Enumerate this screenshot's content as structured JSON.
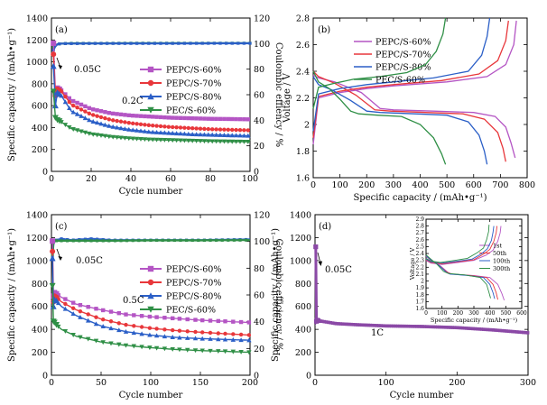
{
  "chart_data": [
    {
      "id": "a",
      "panel_label": "(a)",
      "type": "scatter",
      "xlabel": "Cycle number",
      "ylabel": "Specific capacity / (mAh•g⁻¹)",
      "y2label": "Coulombic effiency / %",
      "xlim": [
        0,
        100
      ],
      "ylim": [
        0,
        1400
      ],
      "y2lim": [
        0,
        120
      ],
      "xticks": [
        0,
        20,
        40,
        60,
        80,
        100
      ],
      "yticks": [
        0,
        200,
        400,
        600,
        800,
        1000,
        1200,
        1400
      ],
      "y2ticks": [
        0,
        20,
        40,
        60,
        80,
        100,
        120
      ],
      "annotations": [
        "0.05C",
        "0.2C"
      ],
      "legend_position": "right",
      "series": [
        {
          "name": "PEPC/S-60%",
          "color": "#b455c4",
          "marker": "square",
          "x": [
            1,
            2,
            3,
            5,
            10,
            20,
            30,
            40,
            50,
            60,
            70,
            80,
            90,
            100
          ],
          "y": [
            1170,
            720,
            760,
            740,
            650,
            570,
            530,
            510,
            500,
            490,
            485,
            480,
            478,
            475
          ]
        },
        {
          "name": "PEPC/S-70%",
          "color": "#e8373b",
          "marker": "circle",
          "x": [
            1,
            2,
            3,
            5,
            10,
            20,
            30,
            40,
            50,
            60,
            70,
            80,
            90,
            100
          ],
          "y": [
            1070,
            690,
            750,
            730,
            610,
            520,
            470,
            440,
            420,
            405,
            395,
            385,
            380,
            375
          ]
        },
        {
          "name": "PEPC/S-80%",
          "color": "#2b5fc7",
          "marker": "triangle",
          "x": [
            1,
            2,
            3,
            5,
            10,
            20,
            30,
            40,
            50,
            60,
            70,
            80,
            90,
            100
          ],
          "y": [
            960,
            600,
            720,
            690,
            550,
            460,
            410,
            380,
            360,
            350,
            340,
            335,
            330,
            325
          ]
        },
        {
          "name": "PEC/S-60%",
          "color": "#2f8f46",
          "marker": "triangle-down",
          "x": [
            1,
            2,
            3,
            5,
            10,
            20,
            30,
            40,
            50,
            60,
            70,
            80,
            90,
            100
          ],
          "y": [
            730,
            490,
            470,
            450,
            390,
            340,
            315,
            300,
            290,
            285,
            280,
            275,
            272,
            270
          ]
        }
      ],
      "ce_series": [
        {
          "color": "#2f8f46",
          "x": [
            1,
            2,
            3,
            5,
            10,
            20,
            40,
            60,
            80,
            100
          ],
          "y": [
            97,
            98,
            99.5,
            100,
            100.2,
            100.2,
            100.3,
            100.3,
            100.3,
            100.3
          ]
        },
        {
          "color": "#2b5fc7",
          "x": [
            1,
            2,
            3,
            5,
            10,
            20,
            40,
            60,
            80,
            100
          ],
          "y": [
            95,
            98,
            99.5,
            100,
            100,
            100.1,
            100.1,
            100.1,
            100.2,
            100.2
          ]
        }
      ]
    },
    {
      "id": "b",
      "panel_label": "(b)",
      "type": "line",
      "xlabel": "Specific capacity / (mAh•g⁻¹)",
      "ylabel": "Voltage / V",
      "xlim": [
        0,
        800
      ],
      "ylim": [
        1.6,
        2.8
      ],
      "xticks": [
        0,
        100,
        200,
        300,
        400,
        500,
        600,
        700,
        800
      ],
      "yticks": [
        1.6,
        1.8,
        2.0,
        2.2,
        2.4,
        2.6,
        2.8
      ],
      "legend_position": "top-right",
      "series": [
        {
          "name": "PEPC/S-60%",
          "color": "#b455c4",
          "discharge": {
            "x": [
              0,
              20,
              80,
              180,
              250,
              300,
              450,
              600,
              680,
              720,
              740,
              755
            ],
            "y": [
              2.37,
              2.35,
              2.32,
              2.24,
              2.12,
              2.11,
              2.1,
              2.09,
              2.06,
              1.98,
              1.86,
              1.75
            ]
          },
          "charge": {
            "x": [
              0,
              20,
              100,
              200,
              300,
              500,
              650,
              720,
              750,
              760
            ],
            "y": [
              1.85,
              2.2,
              2.24,
              2.27,
              2.29,
              2.32,
              2.36,
              2.45,
              2.6,
              2.78
            ]
          }
        },
        {
          "name": "PEPC/S-70%",
          "color": "#e8373b",
          "discharge": {
            "x": [
              0,
              20,
              80,
              160,
              230,
              290,
              420,
              560,
              640,
              690,
              710,
              720
            ],
            "y": [
              2.4,
              2.36,
              2.31,
              2.22,
              2.11,
              2.1,
              2.09,
              2.08,
              2.04,
              1.94,
              1.82,
              1.72
            ]
          },
          "charge": {
            "x": [
              0,
              20,
              100,
              200,
              300,
              480,
              620,
              690,
              720,
              730
            ],
            "y": [
              1.9,
              2.21,
              2.25,
              2.28,
              2.3,
              2.33,
              2.38,
              2.48,
              2.63,
              2.78
            ]
          }
        },
        {
          "name": "PEPC/S-80%",
          "color": "#2b5fc7",
          "discharge": {
            "x": [
              0,
              20,
              70,
              140,
              200,
              250,
              380,
              500,
              580,
              620,
              640,
              650
            ],
            "y": [
              2.36,
              2.3,
              2.26,
              2.18,
              2.1,
              2.09,
              2.08,
              2.07,
              2.02,
              1.92,
              1.8,
              1.7
            ]
          },
          "charge": {
            "x": [
              0,
              20,
              100,
              200,
              300,
              450,
              580,
              630,
              650,
              660
            ],
            "y": [
              1.95,
              2.23,
              2.27,
              2.3,
              2.32,
              2.35,
              2.4,
              2.52,
              2.66,
              2.8
            ]
          }
        },
        {
          "name": "PEC/S-60%",
          "color": "#2f8f46",
          "discharge": {
            "x": [
              0,
              20,
              60,
              100,
              140,
              170,
              240,
              330,
              400,
              450,
              480,
              495
            ],
            "y": [
              2.4,
              2.32,
              2.27,
              2.19,
              2.1,
              2.08,
              2.07,
              2.06,
              2.0,
              1.9,
              1.78,
              1.7
            ]
          },
          "charge": {
            "x": [
              0,
              20,
              80,
              150,
              250,
              350,
              420,
              460,
              485,
              495
            ],
            "y": [
              2.12,
              2.28,
              2.31,
              2.34,
              2.36,
              2.39,
              2.45,
              2.55,
              2.68,
              2.8
            ]
          }
        }
      ]
    },
    {
      "id": "c",
      "panel_label": "(c)",
      "type": "scatter",
      "xlabel": "Cycle number",
      "ylabel": "Specific capacity / (mAh•g⁻¹)",
      "y2label": "Coulombic efficiency / %",
      "xlim": [
        0,
        200
      ],
      "ylim": [
        0,
        1400
      ],
      "y2lim": [
        0,
        120
      ],
      "xticks": [
        0,
        50,
        100,
        150,
        200
      ],
      "yticks": [
        0,
        200,
        400,
        600,
        800,
        1000,
        1200,
        1400
      ],
      "y2ticks": [
        0,
        20,
        40,
        60,
        80,
        100,
        120
      ],
      "annotations": [
        "0.05C",
        "0.5C"
      ],
      "legend_position": "right",
      "series": [
        {
          "name": "PEPC/S-60%",
          "color": "#b455c4",
          "marker": "square",
          "x": [
            1,
            2,
            3,
            5,
            10,
            25,
            50,
            75,
            100,
            125,
            150,
            175,
            200
          ],
          "y": [
            1170,
            690,
            720,
            710,
            680,
            620,
            570,
            530,
            510,
            495,
            480,
            470,
            460
          ]
        },
        {
          "name": "PEPC/S-70%",
          "color": "#e8373b",
          "marker": "circle",
          "x": [
            1,
            2,
            3,
            5,
            10,
            25,
            50,
            75,
            100,
            125,
            150,
            175,
            200
          ],
          "y": [
            1080,
            640,
            690,
            680,
            640,
            570,
            490,
            440,
            410,
            390,
            375,
            362,
            350
          ]
        },
        {
          "name": "PEPC/S-80%",
          "color": "#2b5fc7",
          "marker": "triangle",
          "x": [
            1,
            2,
            3,
            5,
            10,
            25,
            50,
            75,
            100,
            125,
            150,
            175,
            200
          ],
          "y": [
            1020,
            600,
            660,
            650,
            600,
            520,
            430,
            380,
            350,
            330,
            320,
            312,
            305
          ]
        },
        {
          "name": "PEC/S-60%",
          "color": "#2f8f46",
          "marker": "triangle-down",
          "x": [
            1,
            2,
            3,
            5,
            10,
            25,
            50,
            75,
            100,
            125,
            150,
            175,
            200
          ],
          "y": [
            780,
            470,
            460,
            440,
            400,
            340,
            290,
            260,
            240,
            225,
            215,
            208,
            200
          ]
        }
      ],
      "ce_series": [
        {
          "color": "#2b5fc7",
          "x": [
            1,
            2,
            3,
            5,
            10,
            20,
            40,
            60,
            100,
            150,
            200
          ],
          "y": [
            88,
            98,
            100,
            101,
            102,
            101,
            102,
            101,
            101,
            101,
            101.5
          ]
        },
        {
          "color": "#2f8f46",
          "x": [
            1,
            2,
            3,
            5,
            10,
            20,
            40,
            60,
            100,
            150,
            200
          ],
          "y": [
            90,
            99,
            100,
            100.5,
            100.5,
            100.5,
            100.5,
            100.5,
            100.8,
            100.8,
            101
          ]
        }
      ]
    },
    {
      "id": "d",
      "panel_label": "(d)",
      "type": "scatter",
      "xlabel": "Cycle number",
      "ylabel": "Specific capacity / (mAh•g⁻¹)",
      "xlim": [
        0,
        300
      ],
      "ylim": [
        0,
        1400
      ],
      "xticks": [
        0,
        100,
        200,
        300
      ],
      "yticks": [
        0,
        200,
        400,
        600,
        800,
        1000,
        1200,
        1400
      ],
      "annotations": [
        "0.05C",
        "1C"
      ],
      "series": [
        {
          "color": "#8b49a6",
          "marker": "square",
          "x": [
            1,
            2,
            3,
            5,
            10,
            30,
            60,
            100,
            150,
            200,
            250,
            280,
            300
          ],
          "y": [
            1120,
            470,
            480,
            475,
            470,
            450,
            440,
            430,
            425,
            415,
            395,
            380,
            370
          ]
        }
      ]
    },
    {
      "id": "d_inset",
      "type": "line",
      "xlabel": "Specific capacity / (mAh•g⁻¹)",
      "ylabel": "Voltage / V",
      "xlim": [
        0,
        600
      ],
      "ylim": [
        1.6,
        2.9
      ],
      "xticks": [
        0,
        100,
        200,
        300,
        400,
        500,
        600
      ],
      "yticks": [
        1.6,
        1.7,
        1.8,
        1.9,
        2.0,
        2.1,
        2.2,
        2.3,
        2.4,
        2.5,
        2.6,
        2.7,
        2.8,
        2.9
      ],
      "legend_position": "right",
      "series": [
        {
          "name": "1st",
          "color": "#b455c4",
          "discharge": {
            "x": [
              0,
              30,
              90,
              140,
              170,
              300,
              400,
              450,
              475,
              490
            ],
            "y": [
              2.36,
              2.3,
              2.22,
              2.12,
              2.1,
              2.08,
              2.05,
              1.95,
              1.82,
              1.72
            ]
          },
          "charge": {
            "x": [
              0,
              30,
              100,
              200,
              300,
              380,
              420,
              450,
              465,
              470
            ],
            "y": [
              2.3,
              2.26,
              2.24,
              2.27,
              2.3,
              2.38,
              2.45,
              2.58,
              2.7,
              2.8
            ]
          }
        },
        {
          "name": "50th",
          "color": "#e8373b",
          "discharge": {
            "x": [
              0,
              30,
              80,
              130,
              160,
              280,
              380,
              420,
              440,
              450
            ],
            "y": [
              2.37,
              2.31,
              2.23,
              2.13,
              2.1,
              2.08,
              2.05,
              1.95,
              1.83,
              1.73
            ]
          },
          "charge": {
            "x": [
              0,
              30,
              100,
              200,
              300,
              360,
              400,
              425,
              440,
              445
            ],
            "y": [
              2.31,
              2.27,
              2.25,
              2.28,
              2.31,
              2.39,
              2.46,
              2.58,
              2.7,
              2.8
            ]
          }
        },
        {
          "name": "100th",
          "color": "#2b5fc7",
          "discharge": {
            "x": [
              0,
              30,
              80,
              125,
              150,
              260,
              360,
              400,
              420,
              430
            ],
            "y": [
              2.37,
              2.31,
              2.23,
              2.13,
              2.1,
              2.08,
              2.05,
              1.95,
              1.83,
              1.74
            ]
          },
          "charge": {
            "x": [
              0,
              30,
              100,
              200,
              290,
              350,
              385,
              410,
              420,
              425
            ],
            "y": [
              2.32,
              2.28,
              2.26,
              2.29,
              2.32,
              2.4,
              2.47,
              2.59,
              2.71,
              2.8
            ]
          }
        },
        {
          "name": "300th",
          "color": "#2f8f46",
          "discharge": {
            "x": [
              0,
              30,
              70,
              110,
              140,
              240,
              340,
              380,
              395,
              405
            ],
            "y": [
              2.38,
              2.32,
              2.24,
              2.14,
              2.11,
              2.09,
              2.05,
              1.95,
              1.83,
              1.75
            ]
          },
          "charge": {
            "x": [
              0,
              30,
              90,
              180,
              260,
              320,
              360,
              380,
              392,
              395
            ],
            "y": [
              2.33,
              2.29,
              2.27,
              2.3,
              2.33,
              2.41,
              2.48,
              2.6,
              2.72,
              2.82
            ]
          }
        }
      ]
    }
  ]
}
